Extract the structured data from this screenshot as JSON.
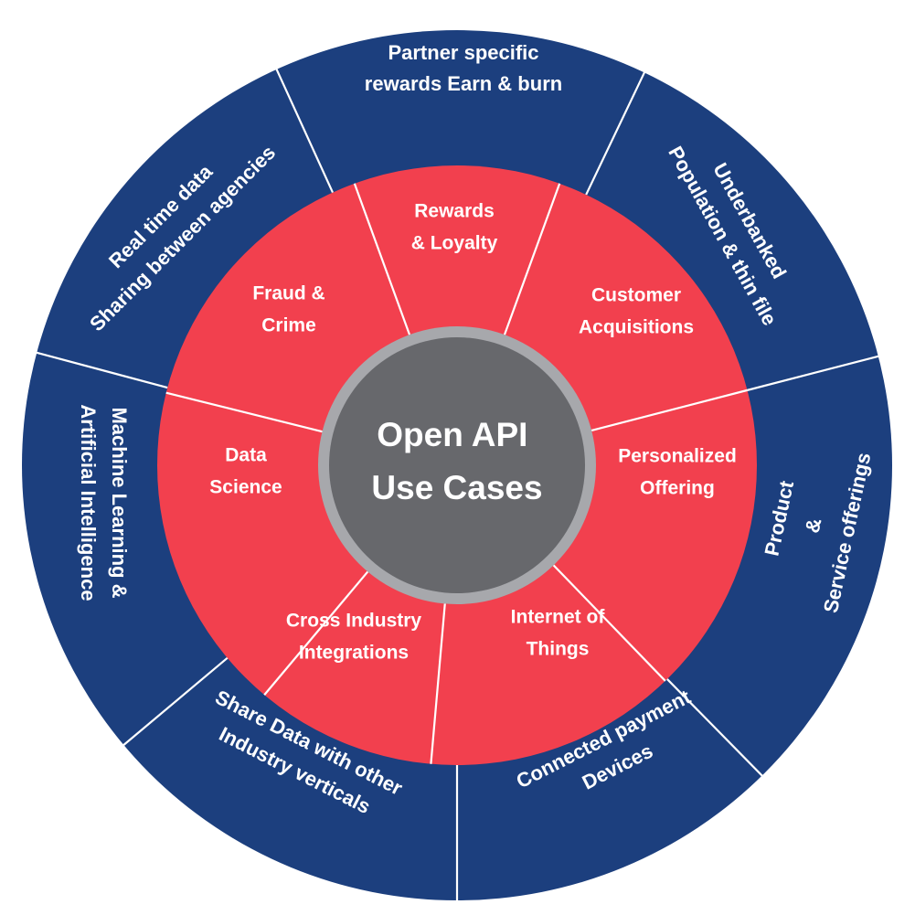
{
  "center": {
    "lines": [
      "Open API",
      "Use Cases"
    ]
  },
  "inner_segments": [
    {
      "lines": [
        "Rewards",
        "& Loyalty"
      ]
    },
    {
      "lines": [
        "Customer",
        "Acquisitions"
      ]
    },
    {
      "lines": [
        "Personalized",
        "Offering"
      ]
    },
    {
      "lines": [
        "Internet of",
        "Things"
      ]
    },
    {
      "lines": [
        "Cross Industry",
        "Integrations"
      ]
    },
    {
      "lines": [
        "Data",
        "Science"
      ]
    },
    {
      "lines": [
        "Fraud &",
        "Crime"
      ]
    }
  ],
  "outer_segments": [
    {
      "lines": [
        "Partner specific",
        "rewards Earn & burn"
      ]
    },
    {
      "lines": [
        "Underbanked",
        "Population & thin file"
      ]
    },
    {
      "lines": [
        "Product",
        "&",
        "Service offerings"
      ]
    },
    {
      "lines": [
        "Connected payment",
        "Devices"
      ]
    },
    {
      "lines": [
        "Share Data with other",
        "Industry verticals"
      ]
    },
    {
      "lines": [
        "Machine Learning &",
        "Artificial Intelligence"
      ]
    },
    {
      "lines": [
        "Real time data",
        "Sharing  between agencies"
      ]
    }
  ],
  "colors": {
    "outer_ring": "#1c3f7e",
    "inner_ring": "#f2404e",
    "hub_fill": "#67686c",
    "hub_border": "#a7a8ac",
    "divider": "#ffffff",
    "text": "#ffffff"
  }
}
